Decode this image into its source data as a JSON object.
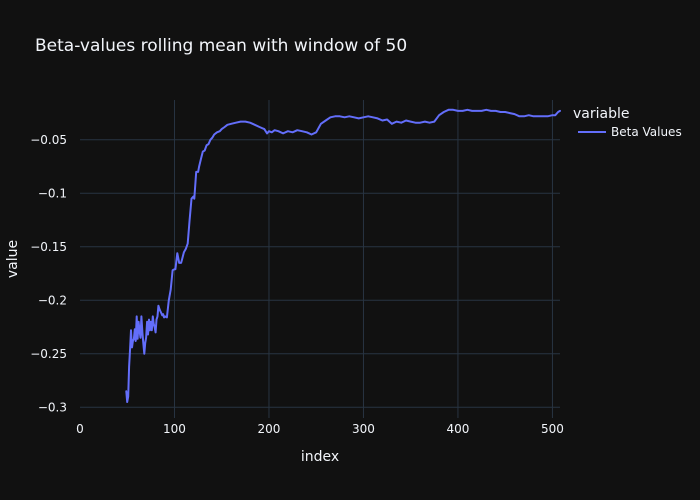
{
  "chart_data": {
    "type": "line",
    "title": "Beta-values rolling mean with window of 50",
    "xlabel": "index",
    "ylabel": "value",
    "xlim": [
      0,
      508
    ],
    "ylim": [
      -0.31,
      -0.0128
    ],
    "xticks": [
      0,
      100,
      200,
      300,
      400,
      500
    ],
    "xtick_labels": [
      "0",
      "100",
      "200",
      "300",
      "400",
      "500"
    ],
    "yticks": [
      -0.05,
      -0.1,
      -0.15,
      -0.2,
      -0.25,
      -0.3
    ],
    "ytick_labels": [
      "−0.05",
      "−0.1",
      "−0.15",
      "−0.2",
      "−0.25",
      "−0.3"
    ],
    "grid": true,
    "legend": {
      "title": "variable",
      "placement": "right"
    },
    "colors": {
      "background": "#111111",
      "grid": "#283442",
      "series": "#636efa",
      "text": "#f2f5fa"
    },
    "series": [
      {
        "name": "Beta Values",
        "color": "#636efa",
        "x": [
          49,
          50,
          51,
          52,
          53,
          54,
          55,
          56,
          57,
          58,
          59,
          60,
          61,
          62,
          63,
          64,
          65,
          66,
          67,
          68,
          69,
          70,
          71,
          72,
          73,
          74,
          75,
          76,
          77,
          78,
          79,
          80,
          81,
          82,
          83,
          84,
          85,
          86,
          87,
          88,
          89,
          90,
          92,
          94,
          96,
          98,
          100,
          101,
          103,
          105,
          107,
          108,
          110,
          112,
          114,
          116,
          118,
          120,
          121,
          123,
          125,
          126,
          128,
          130,
          132,
          134,
          136,
          138,
          140,
          142,
          145,
          148,
          150,
          153,
          156,
          160,
          165,
          170,
          175,
          180,
          185,
          190,
          195,
          198,
          200,
          203,
          206,
          210,
          215,
          220,
          225,
          230,
          235,
          240,
          245,
          250,
          255,
          260,
          265,
          270,
          275,
          280,
          285,
          290,
          295,
          300,
          305,
          310,
          315,
          320,
          325,
          330,
          335,
          340,
          345,
          350,
          355,
          360,
          365,
          370,
          375,
          380,
          385,
          390,
          395,
          400,
          405,
          410,
          415,
          420,
          425,
          430,
          435,
          440,
          445,
          450,
          455,
          460,
          465,
          470,
          475,
          480,
          485,
          490,
          495,
          500,
          503,
          506,
          508
        ],
        "y": [
          -0.285,
          -0.295,
          -0.29,
          -0.262,
          -0.245,
          -0.228,
          -0.244,
          -0.238,
          -0.236,
          -0.227,
          -0.238,
          -0.215,
          -0.236,
          -0.22,
          -0.228,
          -0.235,
          -0.215,
          -0.23,
          -0.24,
          -0.25,
          -0.24,
          -0.235,
          -0.22,
          -0.232,
          -0.218,
          -0.228,
          -0.22,
          -0.228,
          -0.215,
          -0.222,
          -0.225,
          -0.23,
          -0.218,
          -0.215,
          -0.205,
          -0.208,
          -0.21,
          -0.212,
          -0.214,
          -0.213,
          -0.216,
          -0.215,
          -0.216,
          -0.2,
          -0.19,
          -0.172,
          -0.171,
          -0.171,
          -0.156,
          -0.165,
          -0.165,
          -0.162,
          -0.155,
          -0.152,
          -0.147,
          -0.125,
          -0.105,
          -0.103,
          -0.105,
          -0.08,
          -0.08,
          -0.075,
          -0.068,
          -0.061,
          -0.06,
          -0.055,
          -0.054,
          -0.05,
          -0.048,
          -0.045,
          -0.043,
          -0.042,
          -0.04,
          -0.038,
          -0.036,
          -0.035,
          -0.034,
          -0.033,
          -0.033,
          -0.034,
          -0.036,
          -0.038,
          -0.04,
          -0.044,
          -0.042,
          -0.043,
          -0.041,
          -0.042,
          -0.044,
          -0.042,
          -0.043,
          -0.041,
          -0.042,
          -0.043,
          -0.045,
          -0.043,
          -0.035,
          -0.032,
          -0.029,
          -0.028,
          -0.028,
          -0.029,
          -0.028,
          -0.029,
          -0.03,
          -0.029,
          -0.028,
          -0.029,
          -0.03,
          -0.032,
          -0.031,
          -0.035,
          -0.033,
          -0.034,
          -0.032,
          -0.033,
          -0.034,
          -0.034,
          -0.033,
          -0.034,
          -0.033,
          -0.027,
          -0.024,
          -0.022,
          -0.022,
          -0.023,
          -0.023,
          -0.022,
          -0.023,
          -0.023,
          -0.023,
          -0.022,
          -0.023,
          -0.023,
          -0.024,
          -0.024,
          -0.025,
          -0.026,
          -0.028,
          -0.028,
          -0.027,
          -0.028,
          -0.028,
          -0.028,
          -0.028,
          -0.027,
          -0.027,
          -0.024,
          -0.023
        ]
      }
    ]
  }
}
